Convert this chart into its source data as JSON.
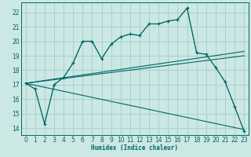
{
  "xlabel": "Humidex (Indice chaleur)",
  "bg_color": "#cce8e4",
  "grid_color": "#9ecece",
  "line_color": "#006666",
  "xlim": [
    -0.5,
    23.5
  ],
  "ylim": [
    13.5,
    22.7
  ],
  "xticks": [
    0,
    1,
    2,
    3,
    4,
    5,
    6,
    7,
    8,
    9,
    10,
    11,
    12,
    13,
    14,
    15,
    16,
    17,
    18,
    19,
    20,
    21,
    22,
    23
  ],
  "yticks": [
    14,
    15,
    16,
    17,
    18,
    19,
    20,
    21,
    22
  ],
  "main_curve_x": [
    0,
    1,
    2,
    3,
    4,
    5,
    6,
    7,
    8,
    9,
    10,
    11,
    12,
    13,
    14,
    15,
    16,
    17,
    18,
    19,
    20,
    21,
    22,
    23
  ],
  "main_curve_y": [
    17.1,
    16.7,
    14.3,
    17.0,
    17.5,
    18.5,
    20.0,
    20.0,
    18.8,
    19.8,
    20.3,
    20.5,
    20.4,
    21.2,
    21.2,
    21.4,
    21.5,
    22.3,
    19.2,
    19.1,
    18.2,
    17.2,
    15.5,
    13.8
  ],
  "line1_x": [
    0,
    23
  ],
  "line1_y": [
    17.1,
    19.3
  ],
  "line2_x": [
    0,
    23
  ],
  "line2_y": [
    17.1,
    19.0
  ],
  "line3_x": [
    0,
    23
  ],
  "line3_y": [
    17.1,
    13.9
  ],
  "dotted_curve_x": [
    0,
    1,
    2,
    3,
    4,
    5,
    6,
    7,
    8,
    9,
    10,
    11,
    12,
    13,
    14,
    15,
    16,
    17,
    18,
    19,
    20,
    21,
    22,
    23
  ],
  "dotted_curve_y": [
    17.1,
    16.7,
    14.3,
    17.0,
    17.5,
    18.5,
    20.0,
    20.0,
    18.8,
    19.8,
    20.3,
    20.5,
    20.4,
    21.2,
    21.2,
    21.4,
    21.5,
    22.3,
    19.2,
    19.1,
    18.2,
    17.2,
    15.5,
    13.8
  ]
}
